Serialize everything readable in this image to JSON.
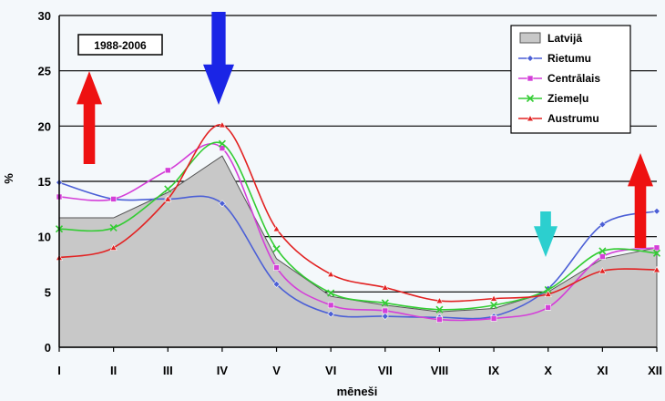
{
  "chart_data": {
    "type": "line",
    "xlabel": "mēneši",
    "ylabel": "%",
    "ylim": [
      0,
      30
    ],
    "yticks": [
      0,
      5,
      10,
      15,
      20,
      25,
      30
    ],
    "categories": [
      "I",
      "II",
      "III",
      "IV",
      "V",
      "VI",
      "VII",
      "VIII",
      "IX",
      "X",
      "XI",
      "XII"
    ],
    "grid": "horizontal",
    "legend_position": "top-right",
    "annotation": "1988-2006",
    "series": [
      {
        "name": "Latvijā",
        "kind": "area",
        "color": "#c8c8c8",
        "values": [
          11.7,
          11.7,
          14.0,
          17.3,
          8.0,
          4.6,
          3.8,
          3.2,
          3.5,
          5.0,
          8.0,
          9.0
        ]
      },
      {
        "name": "Rietumu",
        "kind": "line",
        "color": "#4b5fd6",
        "marker": "diamond",
        "values": [
          14.9,
          13.4,
          13.4,
          13.0,
          5.7,
          3.0,
          2.8,
          2.7,
          2.8,
          5.3,
          11.1,
          12.3
        ]
      },
      {
        "name": "Centrālais",
        "kind": "line",
        "color": "#d43fd8",
        "marker": "square",
        "values": [
          13.6,
          13.4,
          16.0,
          18.0,
          7.2,
          3.8,
          3.3,
          2.5,
          2.6,
          3.6,
          8.2,
          9.0
        ]
      },
      {
        "name": "Ziemeļu",
        "kind": "line",
        "color": "#33cc33",
        "marker": "x",
        "values": [
          10.7,
          10.8,
          14.3,
          18.4,
          8.9,
          4.9,
          4.0,
          3.4,
          3.8,
          5.2,
          8.7,
          8.5
        ]
      },
      {
        "name": "Austrumu",
        "kind": "line",
        "color": "#e22222",
        "marker": "triangle",
        "values": [
          8.1,
          9.0,
          13.4,
          20.1,
          10.7,
          6.6,
          5.4,
          4.2,
          4.4,
          4.8,
          6.9,
          7.0
        ]
      }
    ],
    "arrows": [
      {
        "name": "red-up-arrow-left",
        "color": "#ee1111",
        "direction": "up"
      },
      {
        "name": "blue-down-arrow",
        "color": "#1a25e6",
        "direction": "down"
      },
      {
        "name": "cyan-down-arrow",
        "color": "#2ccfcf",
        "direction": "down"
      },
      {
        "name": "red-up-arrow-right",
        "color": "#ee1111",
        "direction": "up"
      }
    ]
  }
}
